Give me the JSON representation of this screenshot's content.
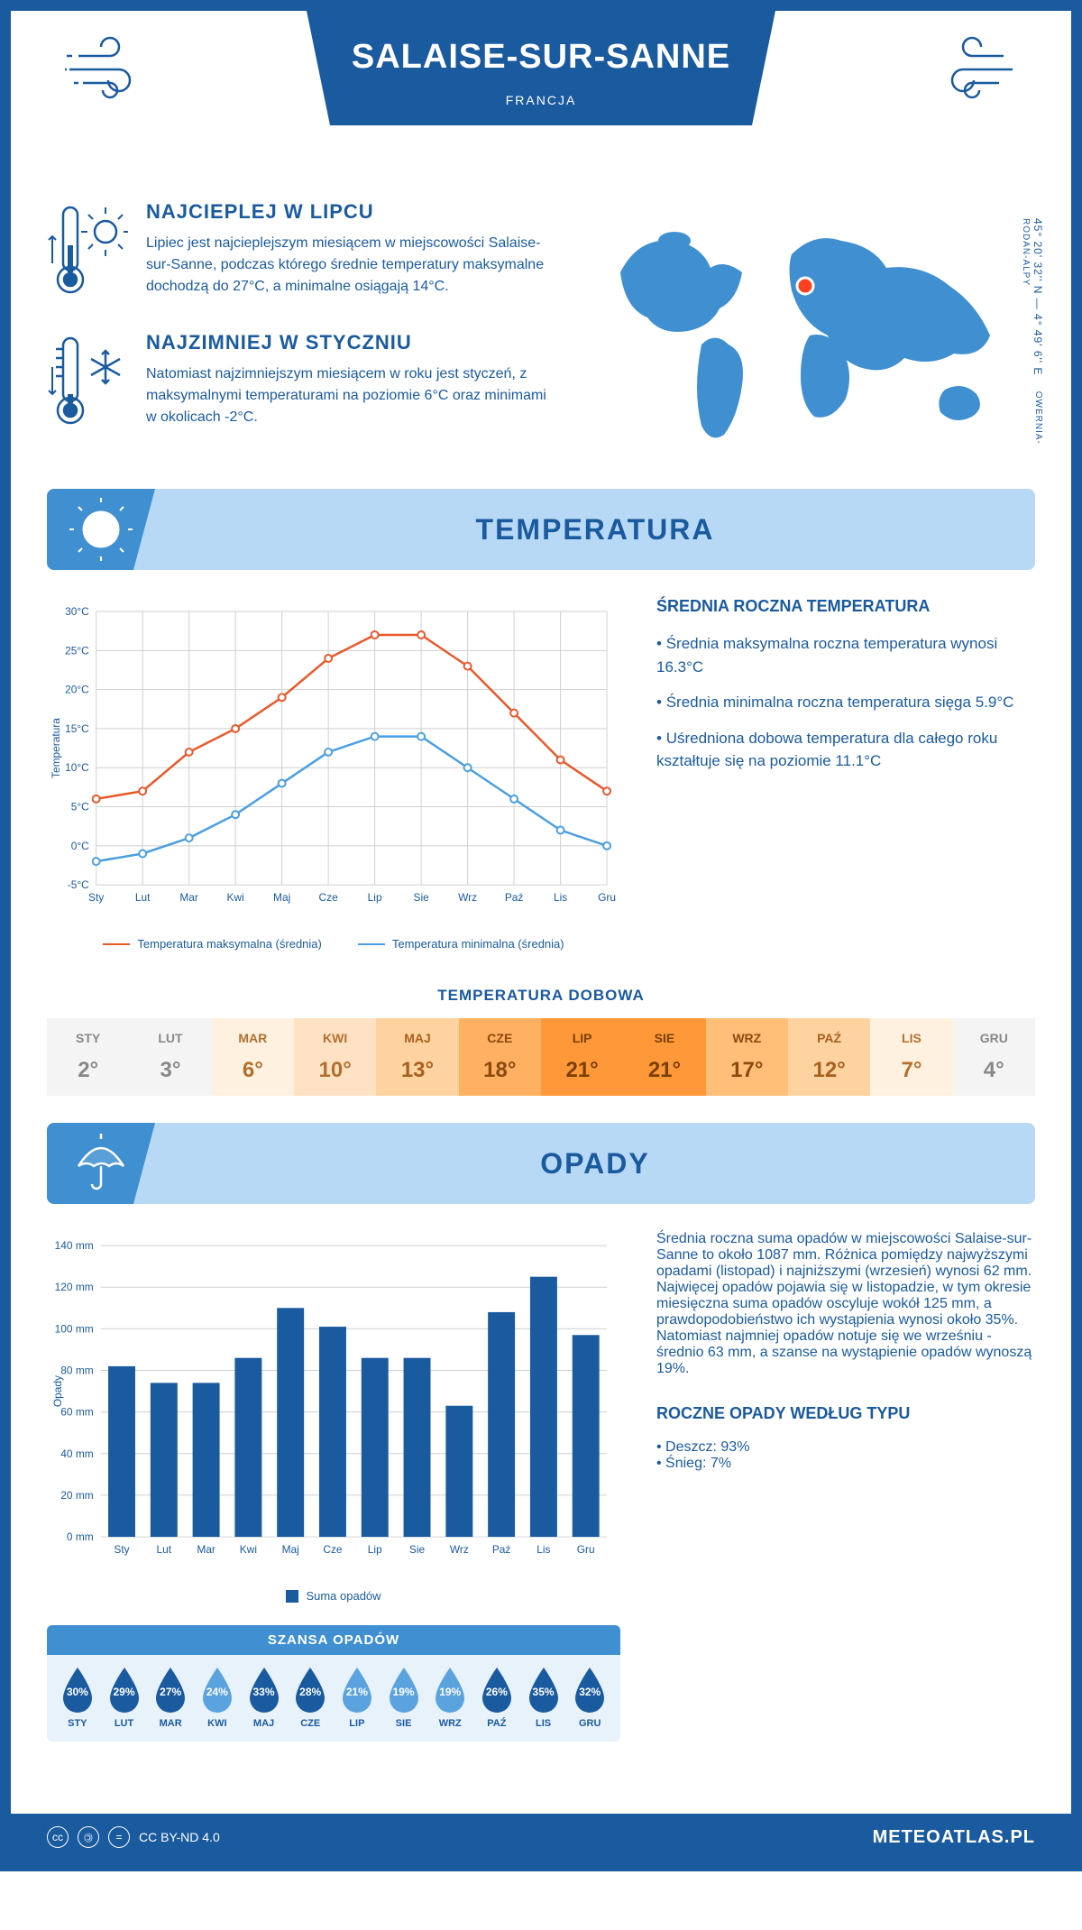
{
  "header": {
    "title": "SALAISE-SUR-SANNE",
    "country": "FRANCJA"
  },
  "coords": "45° 20' 32'' N — 4° 49' 6'' E",
  "region": "OWERNIA-RODAN-ALPY",
  "warmest": {
    "heading": "NAJCIEPLEJ W LIPCU",
    "text": "Lipiec jest najcieplejszym miesiącem w miejscowości Salaise-sur-Sanne, podczas którego średnie temperatury maksymalne dochodzą do 27°C, a minimalne osiągają 14°C."
  },
  "coldest": {
    "heading": "NAJZIMNIEJ W STYCZNIU",
    "text": "Natomiast najzimniejszym miesiącem w roku jest styczeń, z maksymalnymi temperaturami na poziomie 6°C oraz minimami w okolicach -2°C."
  },
  "temperature": {
    "section_title": "TEMPERATURA",
    "info_heading": "ŚREDNIA ROCZNA TEMPERATURA",
    "bullets": [
      "Średnia maksymalna roczna temperatura wynosi 16.3°C",
      "Średnia minimalna roczna temperatura sięga 5.9°C",
      "Uśredniona dobowa temperatura dla całego roku kształtuje się na poziomie 11.1°C"
    ],
    "months": [
      "Sty",
      "Lut",
      "Mar",
      "Kwi",
      "Maj",
      "Cze",
      "Lip",
      "Sie",
      "Wrz",
      "Paź",
      "Lis",
      "Gru"
    ],
    "max_series": [
      6,
      7,
      12,
      15,
      19,
      24,
      27,
      27,
      23,
      17,
      11,
      7
    ],
    "min_series": [
      -2,
      -1,
      1,
      4,
      8,
      12,
      14,
      14,
      10,
      6,
      2,
      0
    ],
    "max_color": "#e8582b",
    "min_color": "#4b9fe1",
    "y_min": -5,
    "y_max": 30,
    "y_step": 5,
    "y_label": "Temperatura",
    "legend_max": "Temperatura maksymalna (średnia)",
    "legend_min": "Temperatura minimalna (średnia)",
    "grid_color": "#d0d0d0"
  },
  "daily": {
    "heading": "TEMPERATURA DOBOWA",
    "months": [
      "STY",
      "LUT",
      "MAR",
      "KWI",
      "MAJ",
      "CZE",
      "LIP",
      "SIE",
      "WRZ",
      "PAŹ",
      "LIS",
      "GRU"
    ],
    "values": [
      "2°",
      "3°",
      "6°",
      "10°",
      "13°",
      "18°",
      "21°",
      "21°",
      "17°",
      "12°",
      "7°",
      "4°"
    ],
    "bg_colors": [
      "#f4f4f4",
      "#f4f4f4",
      "#fff1e0",
      "#ffe2c4",
      "#ffd39f",
      "#ffb060",
      "#ff9838",
      "#ff9838",
      "#ffbf78",
      "#ffd39f",
      "#fff1e0",
      "#f4f4f4"
    ],
    "text_colors": [
      "#888",
      "#888",
      "#b07030",
      "#b07030",
      "#a86020",
      "#8a4a10",
      "#7a3f08",
      "#7a3f08",
      "#8a4a10",
      "#a86020",
      "#b07030",
      "#888"
    ]
  },
  "precip": {
    "section_title": "OPADY",
    "months": [
      "Sty",
      "Lut",
      "Mar",
      "Kwi",
      "Maj",
      "Cze",
      "Lip",
      "Sie",
      "Wrz",
      "Paź",
      "Lis",
      "Gru"
    ],
    "values": [
      82,
      74,
      74,
      86,
      110,
      101,
      86,
      86,
      63,
      108,
      125,
      97
    ],
    "bar_color": "#1a5a9e",
    "y_max": 140,
    "y_step": 20,
    "y_label": "Opady",
    "legend": "Suma opadów",
    "para1": "Średnia roczna suma opadów w miejscowości Salaise-sur-Sanne to około 1087 mm. Różnica pomiędzy najwyższymi opadami (listopad) i najniższymi (wrzesień) wynosi 62 mm.",
    "para2": "Najwięcej opadów pojawia się w listopadzie, w tym okresie miesięczna suma opadów oscyluje wokół 125 mm, a prawdopodobieństwo ich wystąpienia wynosi około 35%. Natomiast najmniej opadów notuje się we wrześniu - średnio 63 mm, a szanse na wystąpienie opadów wynoszą 19%.",
    "type_heading": "ROCZNE OPADY WEDŁUG TYPU",
    "type_rain": "Deszcz: 93%",
    "type_snow": "Śnieg: 7%"
  },
  "chance": {
    "title": "SZANSA OPADÓW",
    "months": [
      "STY",
      "LUT",
      "MAR",
      "KWI",
      "MAJ",
      "CZE",
      "LIP",
      "SIE",
      "WRZ",
      "PAŹ",
      "LIS",
      "GRU"
    ],
    "values": [
      "30%",
      "29%",
      "27%",
      "24%",
      "33%",
      "28%",
      "21%",
      "19%",
      "19%",
      "26%",
      "35%",
      "32%"
    ],
    "colors": [
      "#1a5a9e",
      "#1a5a9e",
      "#1a5a9e",
      "#5ba3de",
      "#1a5a9e",
      "#1a5a9e",
      "#5ba3de",
      "#5ba3de",
      "#5ba3de",
      "#1a5a9e",
      "#1a5a9e",
      "#1a5a9e"
    ]
  },
  "footer": {
    "license": "CC BY-ND 4.0",
    "site": "METEOATLAS.PL"
  }
}
